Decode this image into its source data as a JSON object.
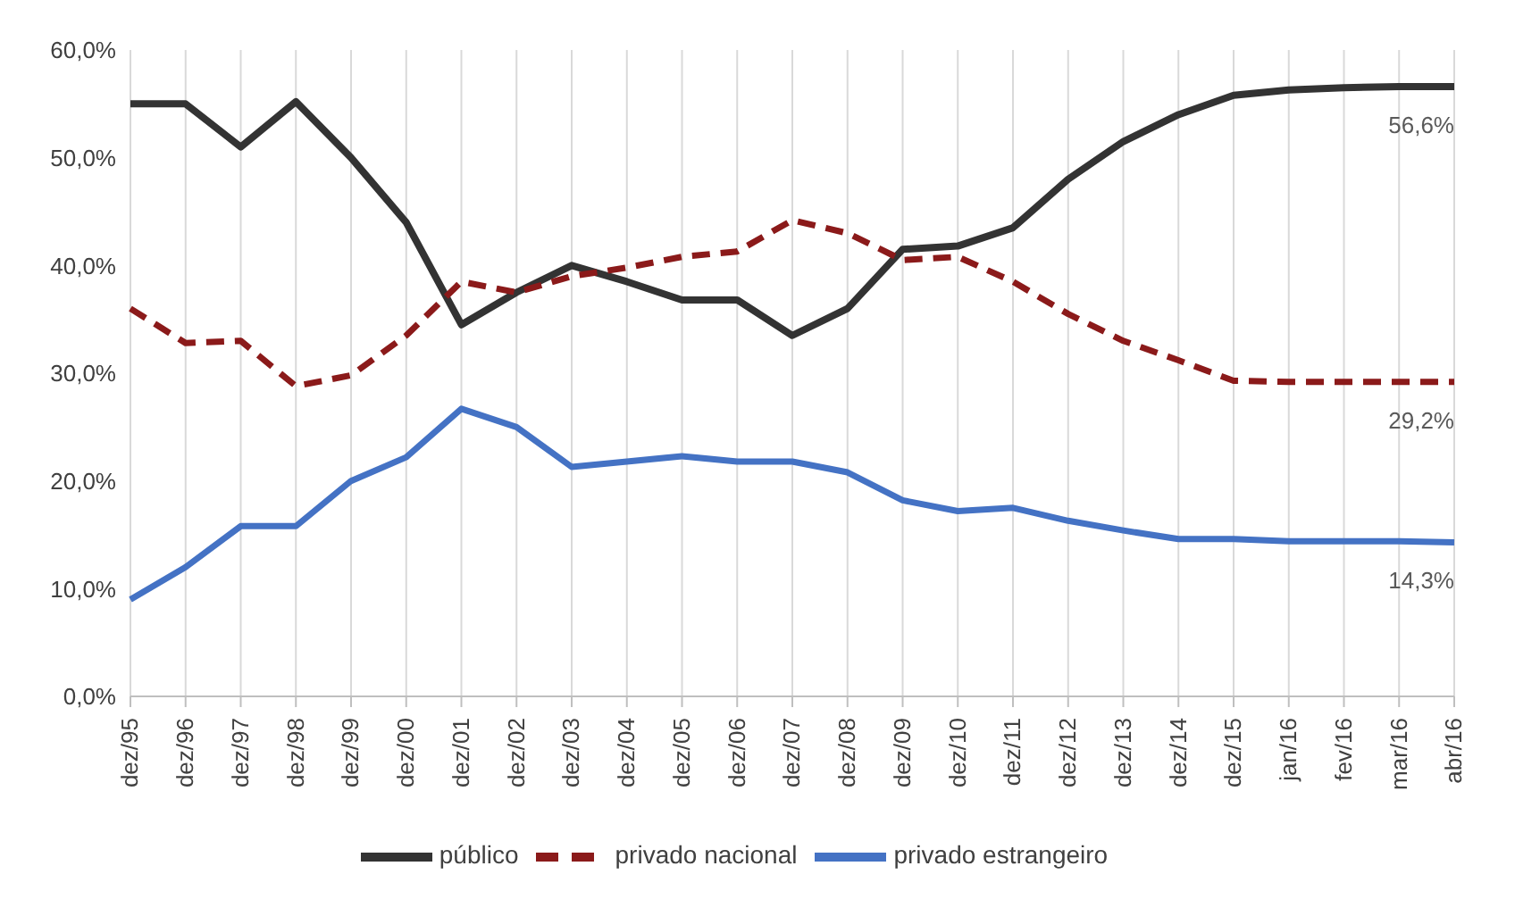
{
  "chart_data": {
    "type": "line",
    "categories": [
      "dez/95",
      "dez/96",
      "dez/97",
      "dez/98",
      "dez/99",
      "dez/00",
      "dez/01",
      "dez/02",
      "dez/03",
      "dez/04",
      "dez/05",
      "dez/06",
      "dez/07",
      "dez/08",
      "dez/09",
      "dez/10",
      "dez/11",
      "dez/12",
      "dez/13",
      "dez/14",
      "dez/15",
      "jan/16",
      "fev/16",
      "mar/16",
      "abr/16"
    ],
    "series": [
      {
        "name": "público",
        "color": "#333333",
        "line_style": "solid",
        "values": [
          55,
          55,
          51,
          55.2,
          50,
          44,
          34.5,
          37.5,
          40,
          38.5,
          36.8,
          36.8,
          33.5,
          36,
          41.5,
          41.8,
          43.5,
          48,
          51.5,
          54,
          55.8,
          56.3,
          56.5,
          56.6,
          56.6
        ],
        "value_labels": [
          null,
          null,
          null,
          null,
          null,
          null,
          null,
          null,
          null,
          null,
          null,
          null,
          null,
          null,
          null,
          null,
          null,
          null,
          null,
          null,
          null,
          null,
          null,
          null,
          "56,6%"
        ]
      },
      {
        "name": "privado nacional",
        "color": "#8b1a1a",
        "line_style": "dashed",
        "values": [
          36,
          32.8,
          33,
          28.8,
          29.8,
          33.5,
          38.5,
          37.5,
          39,
          39.8,
          40.8,
          41.3,
          44.2,
          43,
          40.5,
          40.8,
          38.5,
          35.5,
          33,
          31.2,
          29.3,
          29.2,
          29.2,
          29.2,
          29.2
        ],
        "value_labels": [
          null,
          null,
          null,
          null,
          null,
          null,
          null,
          null,
          null,
          null,
          null,
          null,
          null,
          null,
          null,
          null,
          null,
          null,
          null,
          null,
          null,
          null,
          null,
          null,
          "29,2%"
        ]
      },
      {
        "name": "privado estrangeiro",
        "color": "#4472c4",
        "line_style": "solid",
        "values": [
          9,
          12,
          15.8,
          15.8,
          20,
          22.2,
          26.7,
          25,
          21.3,
          21.8,
          22.3,
          21.8,
          21.8,
          20.8,
          18.2,
          17.2,
          17.5,
          16.3,
          15.4,
          14.6,
          14.6,
          14.4,
          14.4,
          14.4,
          14.3
        ],
        "value_labels": [
          null,
          null,
          null,
          null,
          null,
          null,
          null,
          null,
          null,
          null,
          null,
          null,
          null,
          null,
          null,
          null,
          null,
          null,
          null,
          null,
          null,
          null,
          null,
          null,
          "14,3%"
        ]
      }
    ],
    "ylim": [
      0,
      60
    ],
    "yticks": [
      {
        "value": 0,
        "label": "0,0%"
      },
      {
        "value": 10,
        "label": "10,0%"
      },
      {
        "value": 20,
        "label": "20,0%"
      },
      {
        "value": 30,
        "label": "30,0%"
      },
      {
        "value": 40,
        "label": "40,0%"
      },
      {
        "value": 50,
        "label": "50,0%"
      },
      {
        "value": 60,
        "label": "60,0%"
      }
    ],
    "grid": "x",
    "legend": "bottom",
    "marker": "none"
  }
}
